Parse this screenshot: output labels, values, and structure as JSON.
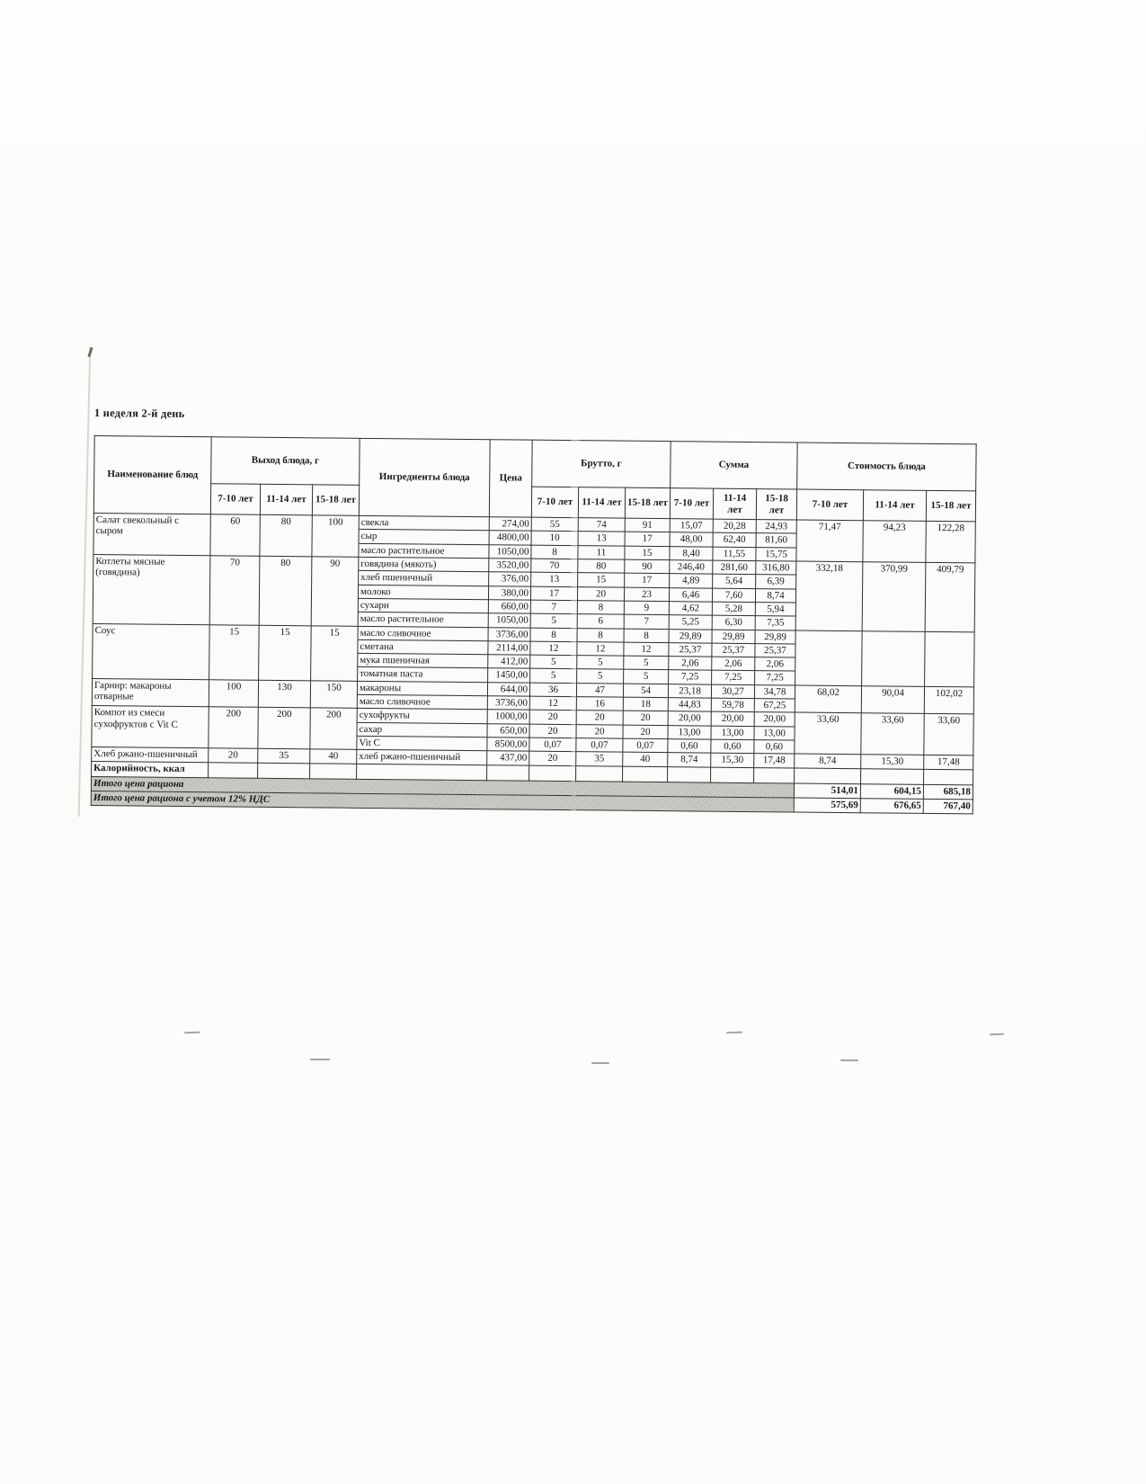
{
  "page": {
    "title": "1 неделя 2-й день",
    "shade_color": "#c9c9c3",
    "border_color": "#2e2e2c"
  },
  "table": {
    "headers": {
      "name": "Наименование блюд",
      "output": "Выход блюда, г",
      "ingredients": "Ингредиенты блюда",
      "price": "Цена",
      "brutto": "Брутто, г",
      "sum": "Сумма",
      "cost": "Стоимость блюда",
      "age_groups": [
        "7-10 лет",
        "11-14 лет",
        "15-18 лет"
      ]
    },
    "groups": [
      {
        "dish": "Салат свекольный с сыром",
        "output": [
          "60",
          "80",
          "100"
        ],
        "cost": [
          "71,47",
          "94,23",
          "122,28"
        ],
        "rows": [
          {
            "ingredient": "свекла",
            "price": "274,00",
            "brutto": [
              "55",
              "74",
              "91"
            ],
            "sum": [
              "15,07",
              "20,28",
              "24,93"
            ]
          },
          {
            "ingredient": "сыр",
            "price": "4800,00",
            "brutto": [
              "10",
              "13",
              "17"
            ],
            "sum": [
              "48,00",
              "62,40",
              "81,60"
            ]
          },
          {
            "ingredient": "масло растительное",
            "price": "1050,00",
            "brutto": [
              "8",
              "11",
              "15"
            ],
            "sum": [
              "8,40",
              "11,55",
              "15,75"
            ]
          }
        ]
      },
      {
        "dish": "Котлеты мясные (говядина)",
        "output": [
          "70",
          "80",
          "90"
        ],
        "cost": [
          "332,18",
          "370,99",
          "409,79"
        ],
        "rows": [
          {
            "ingredient": "говядина (мякоть)",
            "price": "3520,00",
            "brutto": [
              "70",
              "80",
              "90"
            ],
            "sum": [
              "246,40",
              "281,60",
              "316,80"
            ]
          },
          {
            "ingredient": "хлеб пшеничный",
            "price": "376,00",
            "brutto": [
              "13",
              "15",
              "17"
            ],
            "sum": [
              "4,89",
              "5,64",
              "6,39"
            ]
          },
          {
            "ingredient": "молоко",
            "price": "380,00",
            "brutto": [
              "17",
              "20",
              "23"
            ],
            "sum": [
              "6,46",
              "7,60",
              "8,74"
            ]
          },
          {
            "ingredient": "сухари",
            "price": "660,00",
            "brutto": [
              "7",
              "8",
              "9"
            ],
            "sum": [
              "4,62",
              "5,28",
              "5,94"
            ]
          },
          {
            "ingredient": "масло растительное",
            "price": "1050,00",
            "brutto": [
              "5",
              "6",
              "7"
            ],
            "sum": [
              "5,25",
              "6,30",
              "7,35"
            ]
          }
        ]
      },
      {
        "dish": "Соус",
        "output": [
          "15",
          "15",
          "15"
        ],
        "cost": [
          "",
          "",
          ""
        ],
        "rows": [
          {
            "ingredient": "масло сливочное",
            "price": "3736,00",
            "brutto": [
              "8",
              "8",
              "8"
            ],
            "sum": [
              "29,89",
              "29,89",
              "29,89"
            ]
          },
          {
            "ingredient": "сметана",
            "price": "2114,00",
            "brutto": [
              "12",
              "12",
              "12"
            ],
            "sum": [
              "25,37",
              "25,37",
              "25,37"
            ]
          },
          {
            "ingredient": "мука пшеничная",
            "price": "412,00",
            "brutto": [
              "5",
              "5",
              "5"
            ],
            "sum": [
              "2,06",
              "2,06",
              "2,06"
            ]
          },
          {
            "ingredient": "томатная паста",
            "price": "1450,00",
            "brutto": [
              "5",
              "5",
              "5"
            ],
            "sum": [
              "7,25",
              "7,25",
              "7,25"
            ]
          }
        ]
      },
      {
        "dish": "Гарнир: макароны отварные",
        "output": [
          "100",
          "130",
          "150"
        ],
        "cost": [
          "68,02",
          "90,04",
          "102,02"
        ],
        "rows": [
          {
            "ingredient": "макароны",
            "price": "644,00",
            "brutto": [
              "36",
              "47",
              "54"
            ],
            "sum": [
              "23,18",
              "30,27",
              "34,78"
            ]
          },
          {
            "ingredient": "масло сливочное",
            "price": "3736,00",
            "brutto": [
              "12",
              "16",
              "18"
            ],
            "sum": [
              "44,83",
              "59,78",
              "67,25"
            ]
          }
        ]
      },
      {
        "dish": "Компот из смеси сухофруктов с Vit C",
        "output": [
          "200",
          "200",
          "200"
        ],
        "cost": [
          "33,60",
          "33,60",
          "33,60"
        ],
        "rows": [
          {
            "ingredient": "сухофрукты",
            "price": "1000,00",
            "brutto": [
              "20",
              "20",
              "20"
            ],
            "sum": [
              "20,00",
              "20,00",
              "20,00"
            ]
          },
          {
            "ingredient": "сахар",
            "price": "650,00",
            "brutto": [
              "20",
              "20",
              "20"
            ],
            "sum": [
              "13,00",
              "13,00",
              "13,00"
            ]
          },
          {
            "ingredient": "Vit C",
            "price": "8500,00",
            "brutto": [
              "0,07",
              "0,07",
              "0,07"
            ],
            "sum": [
              "0,60",
              "0,60",
              "0,60"
            ]
          }
        ]
      },
      {
        "dish": "Хлеб ржано-пшеничный",
        "output": [
          "20",
          "35",
          "40"
        ],
        "cost": [
          "8,74",
          "15,30",
          "17,48"
        ],
        "rows": [
          {
            "ingredient": "хлеб ржано-пшеничный",
            "price": "437,00",
            "brutto": [
              "20",
              "35",
              "40"
            ],
            "sum": [
              "8,74",
              "15,30",
              "17,48"
            ]
          }
        ]
      }
    ],
    "kcal_row": {
      "label": "Калорийность, ккал"
    },
    "totals": [
      {
        "label": "Итого цена рациона",
        "values": [
          "514,01",
          "604,15",
          "685,18"
        ]
      },
      {
        "label": "Итого цена рациона с учетом 12% НДС",
        "values": [
          "575,69",
          "676,65",
          "767,40"
        ]
      }
    ]
  }
}
